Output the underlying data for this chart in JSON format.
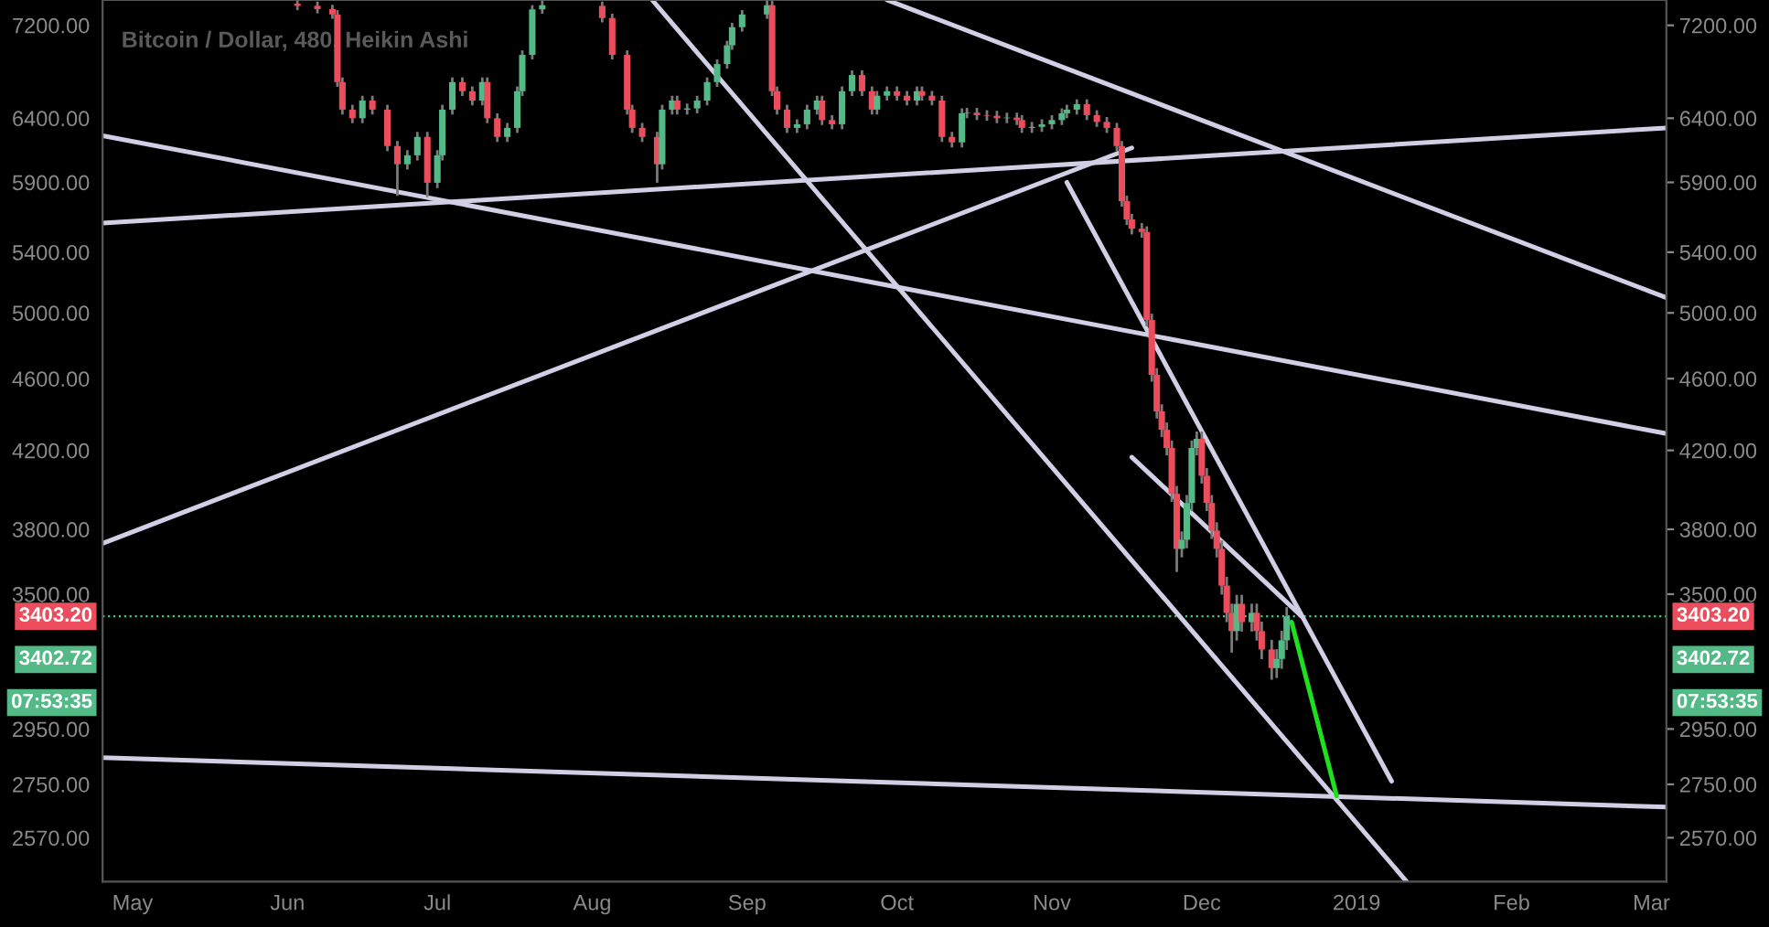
{
  "chart_data": {
    "type": "candlestick",
    "title": "Bitcoin / Dollar, 480, Heikin Ashi",
    "x": [
      "2018-06-03",
      "2018-06-07",
      "2018-06-10",
      "2018-06-11",
      "2018-06-12",
      "2018-06-14",
      "2018-06-16",
      "2018-06-18",
      "2018-06-21",
      "2018-06-23",
      "2018-06-25",
      "2018-06-27",
      "2018-06-29",
      "2018-07-01",
      "2018-07-02",
      "2018-07-04",
      "2018-07-06",
      "2018-07-08",
      "2018-07-10",
      "2018-07-11",
      "2018-07-13",
      "2018-07-15",
      "2018-07-17",
      "2018-07-18",
      "2018-07-20",
      "2018-07-22",
      "2018-08-03",
      "2018-08-05",
      "2018-08-08",
      "2018-08-09",
      "2018-08-11",
      "2018-08-14",
      "2018-08-15",
      "2018-08-17",
      "2018-08-18",
      "2018-08-20",
      "2018-08-22",
      "2018-08-24",
      "2018-08-26",
      "2018-08-28",
      "2018-08-29",
      "2018-08-31",
      "2018-09-05",
      "2018-09-06",
      "2018-09-07",
      "2018-09-09",
      "2018-09-11",
      "2018-09-13",
      "2018-09-15",
      "2018-09-16",
      "2018-09-18",
      "2018-09-20",
      "2018-09-22",
      "2018-09-24",
      "2018-09-26",
      "2018-09-27",
      "2018-09-29",
      "2018-10-01",
      "2018-10-03",
      "2018-10-05",
      "2018-10-06",
      "2018-10-08",
      "2018-10-10",
      "2018-10-12",
      "2018-10-14",
      "2018-10-15",
      "2018-10-17",
      "2018-10-19",
      "2018-10-21",
      "2018-10-23",
      "2018-10-25",
      "2018-10-26",
      "2018-10-28",
      "2018-10-30",
      "2018-11-01",
      "2018-11-03",
      "2018-11-04",
      "2018-11-06",
      "2018-11-08",
      "2018-11-10",
      "2018-11-12",
      "2018-11-14",
      "2018-11-15",
      "2018-11-16",
      "2018-11-17",
      "2018-11-19",
      "2018-11-20",
      "2018-11-21",
      "2018-11-22",
      "2018-11-23",
      "2018-11-24",
      "2018-11-25",
      "2018-11-26",
      "2018-11-27",
      "2018-11-28",
      "2018-11-29",
      "2018-11-30",
      "2018-12-01",
      "2018-12-02",
      "2018-12-03",
      "2018-12-04",
      "2018-12-05",
      "2018-12-06",
      "2018-12-07",
      "2018-12-08",
      "2018-12-09",
      "2018-12-11",
      "2018-12-12",
      "2018-12-13",
      "2018-12-15",
      "2018-12-16",
      "2018-12-17",
      "2018-12-18"
    ],
    "ohlc": [
      [
        7400,
        7430,
        7340,
        7380
      ],
      [
        7380,
        7420,
        7310,
        7350
      ],
      [
        7350,
        7390,
        7260,
        7300
      ],
      [
        7300,
        7340,
        6660,
        6700
      ],
      [
        6700,
        6740,
        6430,
        6470
      ],
      [
        6470,
        6510,
        6360,
        6400
      ],
      [
        6400,
        6585,
        6360,
        6545
      ],
      [
        6545,
        6585,
        6430,
        6470
      ],
      [
        6470,
        6510,
        6138,
        6178
      ],
      [
        6178,
        6218,
        5800,
        6037
      ],
      [
        6037,
        6146,
        5997,
        6106
      ],
      [
        6106,
        6290,
        6066,
        6250
      ],
      [
        6250,
        6290,
        5790,
        5897
      ],
      [
        5897,
        6146,
        5857,
        6106
      ],
      [
        6106,
        6510,
        6066,
        6470
      ],
      [
        6470,
        6740,
        6430,
        6700
      ],
      [
        6700,
        6740,
        6583,
        6623
      ],
      [
        6623,
        6663,
        6505,
        6545
      ],
      [
        6545,
        6740,
        6505,
        6700
      ],
      [
        6700,
        6740,
        6360,
        6400
      ],
      [
        6400,
        6440,
        6210,
        6250
      ],
      [
        6250,
        6362,
        6210,
        6322
      ],
      [
        6322,
        6663,
        6282,
        6623
      ],
      [
        6623,
        6975,
        6583,
        6935
      ],
      [
        6935,
        7387,
        6895,
        7347
      ],
      [
        7347,
        7430,
        7307,
        7386
      ],
      [
        7380,
        7420,
        7227,
        7267
      ],
      [
        7267,
        7307,
        6895,
        6935
      ],
      [
        6935,
        6975,
        6430,
        6470
      ],
      [
        6470,
        6510,
        6282,
        6322
      ],
      [
        6322,
        6362,
        6210,
        6250
      ],
      [
        6250,
        6290,
        5897,
        6037
      ],
      [
        6037,
        6510,
        5997,
        6470
      ],
      [
        6470,
        6585,
        6430,
        6545
      ],
      [
        6545,
        6585,
        6430,
        6470
      ],
      [
        6470,
        6520,
        6430,
        6480
      ],
      [
        6480,
        6585,
        6440,
        6545
      ],
      [
        6545,
        6740,
        6505,
        6700
      ],
      [
        6700,
        6895,
        6660,
        6855
      ],
      [
        6855,
        7060,
        6815,
        7020
      ],
      [
        7020,
        7223,
        6980,
        7183
      ],
      [
        7183,
        7340,
        7143,
        7300
      ],
      [
        7300,
        7430,
        7260,
        7386
      ],
      [
        7386,
        7426,
        6583,
        6623
      ],
      [
        6623,
        6663,
        6430,
        6470
      ],
      [
        6470,
        6510,
        6282,
        6322
      ],
      [
        6322,
        6391,
        6282,
        6351
      ],
      [
        6351,
        6510,
        6311,
        6470
      ],
      [
        6470,
        6585,
        6430,
        6545
      ],
      [
        6545,
        6585,
        6345,
        6385
      ],
      [
        6385,
        6425,
        6311,
        6351
      ],
      [
        6351,
        6663,
        6311,
        6623
      ],
      [
        6623,
        6800,
        6583,
        6760
      ],
      [
        6760,
        6800,
        6583,
        6623
      ],
      [
        6623,
        6663,
        6430,
        6470
      ],
      [
        6470,
        6625,
        6430,
        6585
      ],
      [
        6585,
        6663,
        6545,
        6623
      ],
      [
        6623,
        6663,
        6545,
        6585
      ],
      [
        6585,
        6625,
        6505,
        6545
      ],
      [
        6545,
        6663,
        6505,
        6623
      ],
      [
        6623,
        6663,
        6545,
        6585
      ],
      [
        6585,
        6625,
        6505,
        6545
      ],
      [
        6545,
        6585,
        6210,
        6250
      ],
      [
        6250,
        6290,
        6167,
        6207
      ],
      [
        6207,
        6480,
        6167,
        6440
      ],
      [
        6440,
        6485,
        6400,
        6445
      ],
      [
        6445,
        6485,
        6385,
        6425
      ],
      [
        6425,
        6465,
        6380,
        6420
      ],
      [
        6420,
        6460,
        6360,
        6400
      ],
      [
        6400,
        6445,
        6360,
        6405
      ],
      [
        6405,
        6445,
        6345,
        6385
      ],
      [
        6385,
        6425,
        6282,
        6322
      ],
      [
        6322,
        6370,
        6282,
        6330
      ],
      [
        6330,
        6391,
        6290,
        6351
      ],
      [
        6351,
        6425,
        6311,
        6385
      ],
      [
        6385,
        6480,
        6345,
        6440
      ],
      [
        6440,
        6510,
        6400,
        6470
      ],
      [
        6470,
        6555,
        6430,
        6515
      ],
      [
        6515,
        6555,
        6385,
        6425
      ],
      [
        6425,
        6465,
        6330,
        6370
      ],
      [
        6370,
        6410,
        6282,
        6322
      ],
      [
        6322,
        6362,
        6138,
        6178
      ],
      [
        6178,
        6218,
        5721,
        5761
      ],
      [
        5761,
        5801,
        5589,
        5629
      ],
      [
        5629,
        5669,
        5523,
        5563
      ],
      [
        5563,
        5603,
        5500,
        5540
      ],
      [
        5540,
        5580,
        4915,
        4955
      ],
      [
        4955,
        4995,
        4582,
        4622
      ],
      [
        4622,
        4662,
        4373,
        4413
      ],
      [
        4413,
        4453,
        4271,
        4311
      ],
      [
        4311,
        4351,
        4173,
        4213
      ],
      [
        4213,
        4253,
        3935,
        3975
      ],
      [
        3975,
        4015,
        3600,
        3707
      ],
      [
        3707,
        3790,
        3667,
        3750
      ],
      [
        3750,
        3969,
        3710,
        3929
      ],
      [
        3929,
        4253,
        3889,
        4213
      ],
      [
        4213,
        4302,
        4173,
        4262
      ],
      [
        4262,
        4302,
        4027,
        4067
      ],
      [
        4067,
        4107,
        3889,
        3929
      ],
      [
        3929,
        3969,
        3754,
        3794
      ],
      [
        3794,
        3834,
        3667,
        3707
      ],
      [
        3707,
        3747,
        3498,
        3538
      ],
      [
        3538,
        3578,
        3378,
        3418
      ],
      [
        3418,
        3458,
        3250,
        3340
      ],
      [
        3340,
        3497,
        3300,
        3457
      ],
      [
        3457,
        3497,
        3338,
        3378
      ],
      [
        3378,
        3458,
        3338,
        3418
      ],
      [
        3418,
        3458,
        3300,
        3340
      ],
      [
        3340,
        3380,
        3223,
        3263
      ],
      [
        3263,
        3303,
        3140,
        3187
      ],
      [
        3187,
        3264,
        3147,
        3224
      ],
      [
        3224,
        3341,
        3184,
        3301
      ],
      [
        3301,
        3443,
        3261,
        3403
      ]
    ],
    "colors": [
      "#eb4d5c",
      "#eb4d5c",
      "#eb4d5c",
      "#eb4d5c",
      "#eb4d5c",
      "#eb4d5c",
      "#53b987",
      "#eb4d5c",
      "#eb4d5c",
      "#eb4d5c",
      "#53b987",
      "#53b987",
      "#eb4d5c",
      "#53b987",
      "#53b987",
      "#53b987",
      "#eb4d5c",
      "#eb4d5c",
      "#53b987",
      "#eb4d5c",
      "#eb4d5c",
      "#53b987",
      "#53b987",
      "#53b987",
      "#53b987",
      "#53b987",
      "#eb4d5c",
      "#eb4d5c",
      "#eb4d5c",
      "#eb4d5c",
      "#eb4d5c",
      "#eb4d5c",
      "#53b987",
      "#53b987",
      "#eb4d5c",
      "#53b987",
      "#53b987",
      "#53b987",
      "#53b987",
      "#53b987",
      "#53b987",
      "#53b987",
      "#53b987",
      "#eb4d5c",
      "#eb4d5c",
      "#eb4d5c",
      "#53b987",
      "#53b987",
      "#53b987",
      "#eb4d5c",
      "#eb4d5c",
      "#53b987",
      "#53b987",
      "#eb4d5c",
      "#eb4d5c",
      "#53b987",
      "#53b987",
      "#eb4d5c",
      "#eb4d5c",
      "#53b987",
      "#eb4d5c",
      "#eb4d5c",
      "#eb4d5c",
      "#eb4d5c",
      "#53b987",
      "#53b987",
      "#eb4d5c",
      "#eb4d5c",
      "#eb4d5c",
      "#53b987",
      "#eb4d5c",
      "#eb4d5c",
      "#53b987",
      "#53b987",
      "#53b987",
      "#53b987",
      "#53b987",
      "#53b987",
      "#eb4d5c",
      "#eb4d5c",
      "#eb4d5c",
      "#eb4d5c",
      "#eb4d5c",
      "#eb4d5c",
      "#eb4d5c",
      "#eb4d5c",
      "#eb4d5c",
      "#eb4d5c",
      "#eb4d5c",
      "#eb4d5c",
      "#eb4d5c",
      "#eb4d5c",
      "#eb4d5c",
      "#53b987",
      "#53b987",
      "#53b987",
      "#53b987",
      "#eb4d5c",
      "#eb4d5c",
      "#eb4d5c",
      "#eb4d5c",
      "#eb4d5c",
      "#eb4d5c",
      "#eb4d5c",
      "#53b987",
      "#eb4d5c",
      "#53b987",
      "#eb4d5c",
      "#eb4d5c",
      "#eb4d5c",
      "#53b987",
      "#53b987",
      "#53b987"
    ],
    "series": [
      {
        "type": "line",
        "color": "#d1cfe6",
        "x": [
          "2018-04-25",
          "2019-03-04"
        ],
        "values": [
          6260,
          4290
        ]
      },
      {
        "type": "line",
        "color": "#d1cfe6",
        "x": [
          "2018-04-25",
          "2019-03-04"
        ],
        "values": [
          5603,
          6322
        ]
      },
      {
        "type": "line",
        "color": "#d1cfe6",
        "x": [
          "2018-04-25",
          "2018-11-17"
        ],
        "values": [
          3733,
          6164
        ]
      },
      {
        "type": "line",
        "color": "#d1cfe6",
        "x": [
          "2018-04-25",
          "2019-03-04"
        ],
        "values": [
          2845,
          2672
        ]
      },
      {
        "type": "line",
        "color": "#d1cfe6",
        "x": [
          "2018-08-13",
          "2019-01-11"
        ],
        "values": [
          7435,
          2431
        ]
      },
      {
        "type": "line",
        "color": "#d1cfe6",
        "x": [
          "2018-09-29",
          "2019-03-04"
        ],
        "values": [
          7435,
          5097
        ]
      },
      {
        "type": "line",
        "color": "#d1cfe6",
        "x": [
          "2018-11-04",
          "2019-01-08"
        ],
        "values": [
          5900,
          2761
        ]
      },
      {
        "type": "line",
        "color": "#d1cfe6",
        "x": [
          "2018-11-17",
          "2018-12-21"
        ],
        "values": [
          4164,
          3403
        ]
      },
      {
        "type": "line",
        "color": "#1ee01e",
        "x": [
          "2018-12-19",
          "2018-12-28"
        ],
        "values": [
          3378,
          2710
        ]
      }
    ],
    "log": true,
    "xlim": [
      "2018-04-25",
      "2019-03-04"
    ],
    "xticks": [
      {
        "value": "2018-05-01",
        "label": "May"
      },
      {
        "value": "2018-06-01",
        "label": "Jun"
      },
      {
        "value": "2018-07-01",
        "label": "Jul"
      },
      {
        "value": "2018-08-01",
        "label": "Aug"
      },
      {
        "value": "2018-09-01",
        "label": "Sep"
      },
      {
        "value": "2018-10-01",
        "label": "Oct"
      },
      {
        "value": "2018-11-01",
        "label": "Nov"
      },
      {
        "value": "2018-12-01",
        "label": "Dec"
      },
      {
        "value": "2019-01-01",
        "label": "2019"
      },
      {
        "value": "2019-02-01",
        "label": "Feb"
      },
      {
        "value": "2019-03-01",
        "label": "Mar"
      }
    ],
    "ylim": [
      2431,
      7435
    ],
    "yticks": [
      {
        "value": 2570,
        "label": "2570.00"
      },
      {
        "value": 2750,
        "label": "2750.00"
      },
      {
        "value": 2950,
        "label": "2950.00"
      },
      {
        "value": 3500,
        "label": "3500.00"
      },
      {
        "value": 3800,
        "label": "3800.00"
      },
      {
        "value": 4200,
        "label": "4200.00"
      },
      {
        "value": 4600,
        "label": "4600.00"
      },
      {
        "value": 5000,
        "label": "5000.00"
      },
      {
        "value": 5400,
        "label": "5400.00"
      },
      {
        "value": 5900,
        "label": "5900.00"
      },
      {
        "value": 6400,
        "label": "6400.00"
      },
      {
        "value": 7200,
        "label": "7200.00"
      }
    ],
    "ref_lines": [
      {
        "axis": "y",
        "value": 3403.2,
        "label": "3403.20",
        "color": "#3bd16f",
        "line_style": "dotted"
      }
    ],
    "annotations": [
      "3402.72",
      "07:53:35"
    ],
    "grid": false
  }
}
